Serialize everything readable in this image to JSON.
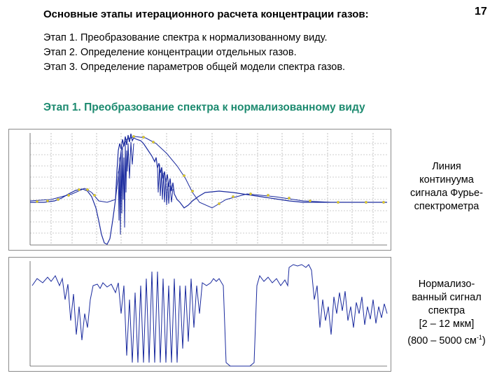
{
  "header": {
    "title": "Основные этапы итерационного расчета концентрации газов:",
    "page_number": "17"
  },
  "steps": [
    "Этап 1. Преобразование спектра к нормализованному виду.",
    "Этап 2. Определение концентрации отдельных газов.",
    "Этап 3. Определение параметров общей модели спектра газов."
  ],
  "section_heading": "Этап 1. Преобразование спектра к нормализованному виду",
  "captions": {
    "continuum": [
      "Линия",
      "континуума",
      "сигнала Фурье-",
      "спектрометра"
    ],
    "normalized": {
      "line1": "Нормализо-",
      "line2": "ванный сигнал",
      "line3": "спектра",
      "line4": "[2 – 12 мкм]",
      "line5_prefix": "(800 – 5000 см",
      "line5_sup": "-1",
      "line5_suffix": ")"
    }
  },
  "colors": {
    "accent_heading": "#1c8a6f",
    "signal": "#1a2a9e",
    "marker": "#e8d21c",
    "grid": "#9a9a9a"
  }
}
